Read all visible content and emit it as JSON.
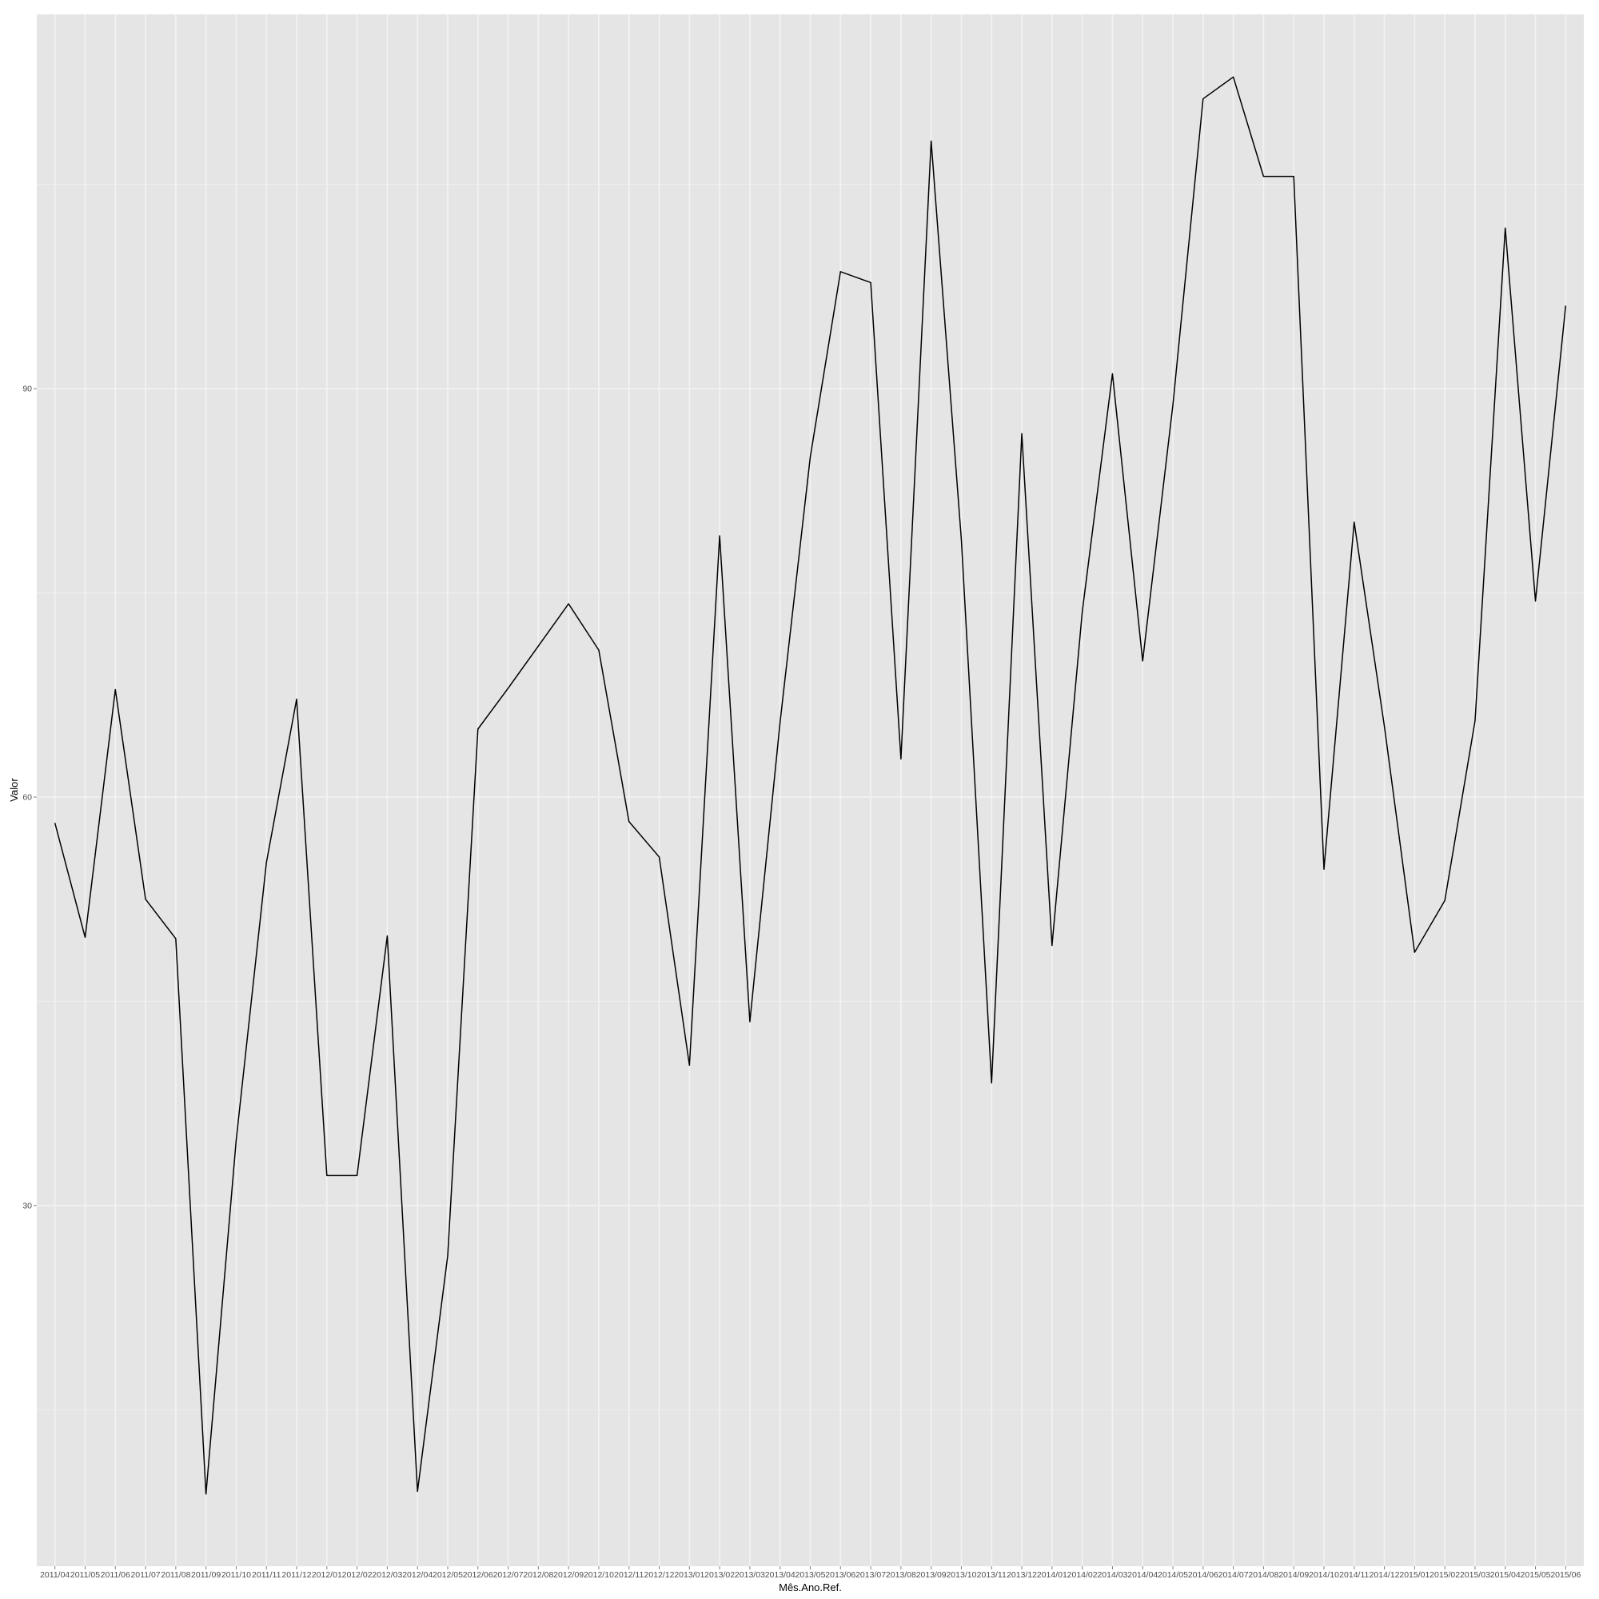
{
  "chart_data": {
    "type": "line",
    "title": "",
    "xlabel": "Mês.Ano.Ref.",
    "ylabel": "Valor",
    "ylim": [
      3.5,
      117.5
    ],
    "y_ticks": [
      30,
      60,
      90
    ],
    "grid": true,
    "categories": [
      "2011/04",
      "2011/05",
      "2011/06",
      "2011/07",
      "2011/08",
      "2011/09",
      "2011/10",
      "2011/11",
      "2011/12",
      "2012/01",
      "2012/02",
      "2012/03",
      "2012/04",
      "2012/05",
      "2012/06",
      "2012/07",
      "2012/08",
      "2012/09",
      "2012/10",
      "2012/11",
      "2012/12",
      "2013/01",
      "2013/02",
      "2013/03",
      "2013/04",
      "2013/05",
      "2013/06",
      "2013/07",
      "2013/08",
      "2013/09",
      "2013/10",
      "2013/11",
      "2013/12",
      "2014/01",
      "2014/02",
      "2014/03",
      "2014/04",
      "2014/05",
      "2014/06",
      "2014/07",
      "2014/08",
      "2014/09",
      "2014/10",
      "2014/11",
      "2014/12",
      "2015/01",
      "2015/02",
      "2015/03",
      "2015/04",
      "2015/05",
      "2015/06"
    ],
    "series": [
      {
        "values": [
          58.1,
          49.7,
          67.9,
          52.5,
          49.6,
          8.8,
          34.8,
          55.2,
          67.2,
          32.2,
          32.2,
          49.8,
          9.0,
          26.3,
          65.0,
          68.0,
          71.1,
          74.2,
          70.8,
          58.2,
          55.6,
          40.3,
          79.2,
          43.5,
          65.5,
          85.0,
          98.6,
          97.8,
          62.8,
          108.2,
          78.9,
          39.0,
          86.7,
          49.1,
          73.6,
          91.1,
          70.0,
          88.8,
          111.3,
          112.9,
          105.6,
          105.6,
          54.7,
          80.2,
          65.2,
          48.6,
          52.4,
          65.6,
          101.8,
          74.4,
          96.1
        ]
      }
    ]
  }
}
